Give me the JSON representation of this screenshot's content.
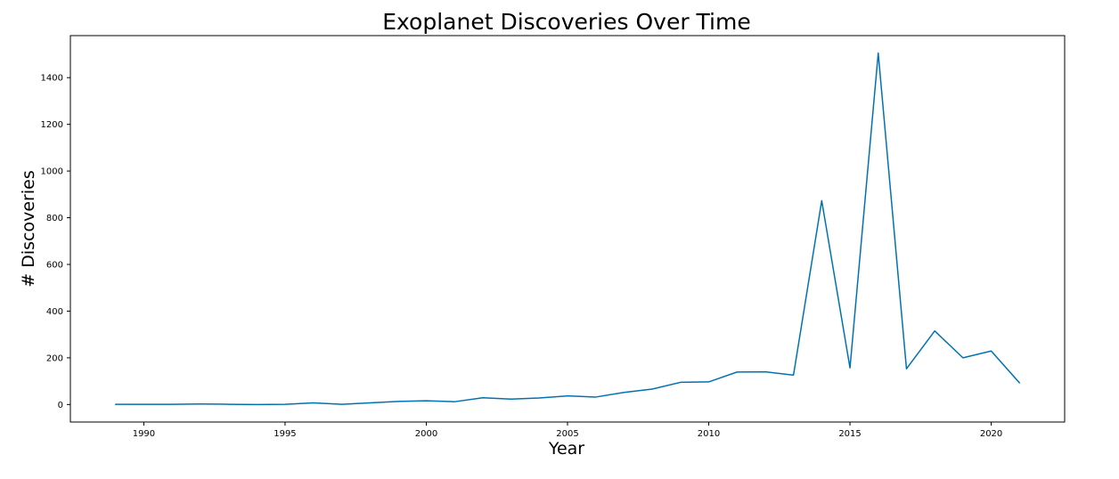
{
  "chart_data": {
    "type": "line",
    "title": "Exoplanet Discoveries Over Time",
    "xlabel": "Year",
    "ylabel": "# Discoveries",
    "xlim": [
      1987.4,
      2022.6
    ],
    "ylim": [
      -75,
      1580
    ],
    "xticks": [
      1990,
      1995,
      2000,
      2005,
      2010,
      2015,
      2020
    ],
    "xtick_labels": [
      "1990",
      "1995",
      "2000",
      "2005",
      "2010",
      "2015",
      "2020"
    ],
    "yticks": [
      0,
      200,
      400,
      600,
      800,
      1000,
      1200,
      1400
    ],
    "ytick_labels": [
      "0",
      "200",
      "400",
      "600",
      "800",
      "1000",
      "1200",
      "1400"
    ],
    "grid": false,
    "legend": "none",
    "series": [
      {
        "color": "#0072b2",
        "x": [
          1989,
          1990,
          1991,
          1992,
          1993,
          1994,
          1995,
          1996,
          1997,
          1998,
          1999,
          2000,
          2001,
          2002,
          2003,
          2004,
          2005,
          2006,
          2007,
          2008,
          2009,
          2010,
          2011,
          2012,
          2013,
          2014,
          2015,
          2016,
          2017,
          2018,
          2019,
          2020,
          2021
        ],
        "y": [
          1,
          1,
          1,
          2,
          1,
          0,
          1,
          7,
          1,
          7,
          13,
          16,
          12,
          29,
          23,
          28,
          37,
          32,
          52,
          66,
          95,
          97,
          139,
          140,
          126,
          873,
          157,
          1505,
          153,
          315,
          200,
          229,
          93
        ]
      }
    ]
  }
}
